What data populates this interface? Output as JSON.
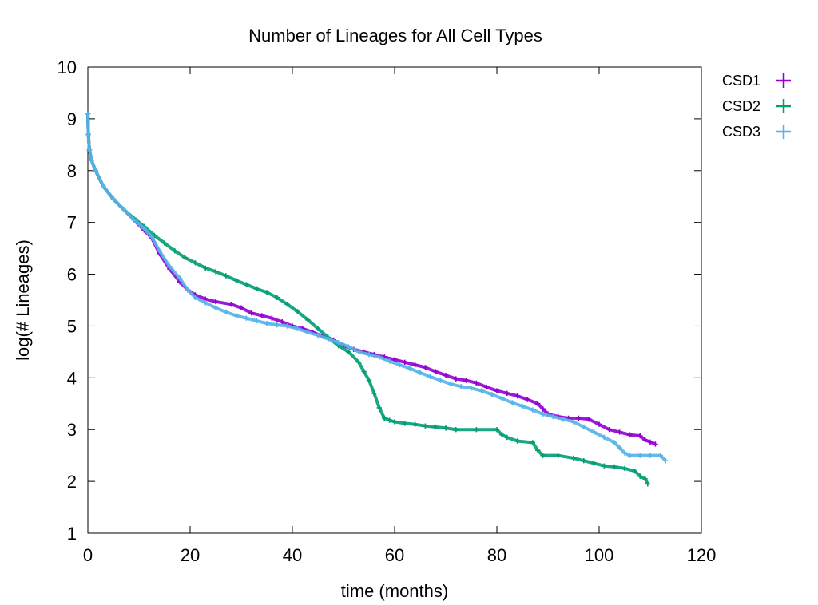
{
  "chart_data": {
    "type": "scatter",
    "title": "Number of Lineages for All Cell Types",
    "xlabel": "time (months)",
    "ylabel": "log(# Lineages)",
    "xlim": [
      0,
      120
    ],
    "ylim": [
      1,
      10
    ],
    "xticks": [
      0,
      20,
      40,
      60,
      80,
      100,
      120
    ],
    "yticks": [
      1,
      2,
      3,
      4,
      5,
      6,
      7,
      8,
      9,
      10
    ],
    "grid": false,
    "legend_position": "outside-top-right",
    "marker": "+",
    "series": [
      {
        "name": "CSD1",
        "color": "#9400d3",
        "points": [
          [
            0,
            9.1
          ],
          [
            0.1,
            8.7
          ],
          [
            0.3,
            8.4
          ],
          [
            0.7,
            8.2
          ],
          [
            1.5,
            8.0
          ],
          [
            3,
            7.7
          ],
          [
            5,
            7.45
          ],
          [
            7,
            7.25
          ],
          [
            9,
            7.05
          ],
          [
            11,
            6.85
          ],
          [
            12.5,
            6.7
          ],
          [
            14,
            6.4
          ],
          [
            16,
            6.1
          ],
          [
            18,
            5.85
          ],
          [
            19.5,
            5.7
          ],
          [
            21,
            5.6
          ],
          [
            23,
            5.52
          ],
          [
            25,
            5.47
          ],
          [
            28,
            5.42
          ],
          [
            30,
            5.35
          ],
          [
            32,
            5.25
          ],
          [
            34,
            5.2
          ],
          [
            36,
            5.15
          ],
          [
            38,
            5.08
          ],
          [
            40,
            5.0
          ],
          [
            42,
            4.95
          ],
          [
            44,
            4.88
          ],
          [
            46,
            4.8
          ],
          [
            48,
            4.73
          ],
          [
            50,
            4.62
          ],
          [
            52,
            4.55
          ],
          [
            54,
            4.5
          ],
          [
            56,
            4.45
          ],
          [
            58,
            4.4
          ],
          [
            60,
            4.35
          ],
          [
            62,
            4.3
          ],
          [
            64,
            4.25
          ],
          [
            66,
            4.2
          ],
          [
            68,
            4.12
          ],
          [
            70,
            4.05
          ],
          [
            72,
            3.98
          ],
          [
            74,
            3.95
          ],
          [
            76,
            3.9
          ],
          [
            78,
            3.82
          ],
          [
            80,
            3.75
          ],
          [
            82,
            3.7
          ],
          [
            84,
            3.65
          ],
          [
            86,
            3.58
          ],
          [
            88,
            3.5
          ],
          [
            89,
            3.4
          ],
          [
            90,
            3.3
          ],
          [
            92,
            3.25
          ],
          [
            94,
            3.22
          ],
          [
            96,
            3.22
          ],
          [
            98,
            3.2
          ],
          [
            100,
            3.1
          ],
          [
            102,
            3.0
          ],
          [
            104,
            2.95
          ],
          [
            106,
            2.9
          ],
          [
            108,
            2.88
          ],
          [
            109,
            2.8
          ],
          [
            110,
            2.76
          ],
          [
            111,
            2.72
          ]
        ]
      },
      {
        "name": "CSD2",
        "color": "#009e73",
        "points": [
          [
            0,
            9.1
          ],
          [
            0.1,
            8.7
          ],
          [
            0.3,
            8.4
          ],
          [
            0.7,
            8.2
          ],
          [
            1.5,
            8.0
          ],
          [
            3,
            7.7
          ],
          [
            5,
            7.45
          ],
          [
            7,
            7.25
          ],
          [
            9,
            7.08
          ],
          [
            11,
            6.92
          ],
          [
            13,
            6.75
          ],
          [
            15,
            6.6
          ],
          [
            17,
            6.45
          ],
          [
            19,
            6.32
          ],
          [
            21,
            6.22
          ],
          [
            23,
            6.12
          ],
          [
            25,
            6.05
          ],
          [
            27,
            5.97
          ],
          [
            29,
            5.88
          ],
          [
            31,
            5.8
          ],
          [
            33,
            5.72
          ],
          [
            35,
            5.65
          ],
          [
            37,
            5.55
          ],
          [
            39,
            5.42
          ],
          [
            41,
            5.28
          ],
          [
            43,
            5.12
          ],
          [
            45,
            4.95
          ],
          [
            47,
            4.78
          ],
          [
            49,
            4.62
          ],
          [
            51,
            4.5
          ],
          [
            53,
            4.3
          ],
          [
            54,
            4.12
          ],
          [
            55,
            3.95
          ],
          [
            56,
            3.7
          ],
          [
            57,
            3.42
          ],
          [
            58,
            3.22
          ],
          [
            59,
            3.18
          ],
          [
            60,
            3.15
          ],
          [
            62,
            3.12
          ],
          [
            64,
            3.1
          ],
          [
            66,
            3.07
          ],
          [
            68,
            3.05
          ],
          [
            70,
            3.03
          ],
          [
            72,
            3.0
          ],
          [
            76,
            3.0
          ],
          [
            80,
            3.0
          ],
          [
            81,
            2.9
          ],
          [
            82,
            2.85
          ],
          [
            84,
            2.78
          ],
          [
            87,
            2.75
          ],
          [
            88,
            2.6
          ],
          [
            89,
            2.5
          ],
          [
            92,
            2.5
          ],
          [
            95,
            2.45
          ],
          [
            97,
            2.4
          ],
          [
            99,
            2.35
          ],
          [
            101,
            2.3
          ],
          [
            103,
            2.28
          ],
          [
            105,
            2.25
          ],
          [
            107,
            2.2
          ],
          [
            108,
            2.1
          ],
          [
            109,
            2.05
          ],
          [
            109.5,
            1.95
          ]
        ]
      },
      {
        "name": "CSD3",
        "color": "#56b4e9",
        "points": [
          [
            0,
            9.1
          ],
          [
            0.1,
            8.7
          ],
          [
            0.3,
            8.4
          ],
          [
            0.7,
            8.2
          ],
          [
            1.5,
            8.0
          ],
          [
            3,
            7.7
          ],
          [
            5,
            7.45
          ],
          [
            7,
            7.25
          ],
          [
            9,
            7.05
          ],
          [
            11,
            6.88
          ],
          [
            12.5,
            6.72
          ],
          [
            14,
            6.45
          ],
          [
            16,
            6.15
          ],
          [
            18,
            5.92
          ],
          [
            19.5,
            5.7
          ],
          [
            21,
            5.55
          ],
          [
            23,
            5.45
          ],
          [
            25,
            5.35
          ],
          [
            27,
            5.27
          ],
          [
            29,
            5.2
          ],
          [
            31,
            5.15
          ],
          [
            33,
            5.1
          ],
          [
            35,
            5.05
          ],
          [
            37,
            5.02
          ],
          [
            39,
            5.0
          ],
          [
            41,
            4.95
          ],
          [
            43,
            4.88
          ],
          [
            45,
            4.82
          ],
          [
            47,
            4.75
          ],
          [
            49,
            4.68
          ],
          [
            51,
            4.6
          ],
          [
            53,
            4.5
          ],
          [
            55,
            4.45
          ],
          [
            57,
            4.4
          ],
          [
            59,
            4.32
          ],
          [
            61,
            4.25
          ],
          [
            63,
            4.18
          ],
          [
            65,
            4.1
          ],
          [
            67,
            4.02
          ],
          [
            69,
            3.95
          ],
          [
            71,
            3.88
          ],
          [
            73,
            3.83
          ],
          [
            75,
            3.8
          ],
          [
            77,
            3.75
          ],
          [
            79,
            3.68
          ],
          [
            81,
            3.6
          ],
          [
            83,
            3.52
          ],
          [
            85,
            3.45
          ],
          [
            87,
            3.38
          ],
          [
            89,
            3.3
          ],
          [
            91,
            3.25
          ],
          [
            93,
            3.2
          ],
          [
            95,
            3.15
          ],
          [
            97,
            3.05
          ],
          [
            99,
            2.95
          ],
          [
            101,
            2.85
          ],
          [
            103,
            2.75
          ],
          [
            104,
            2.65
          ],
          [
            105,
            2.55
          ],
          [
            106,
            2.5
          ],
          [
            108,
            2.5
          ],
          [
            110,
            2.5
          ],
          [
            112,
            2.5
          ],
          [
            113,
            2.4
          ]
        ]
      }
    ]
  }
}
